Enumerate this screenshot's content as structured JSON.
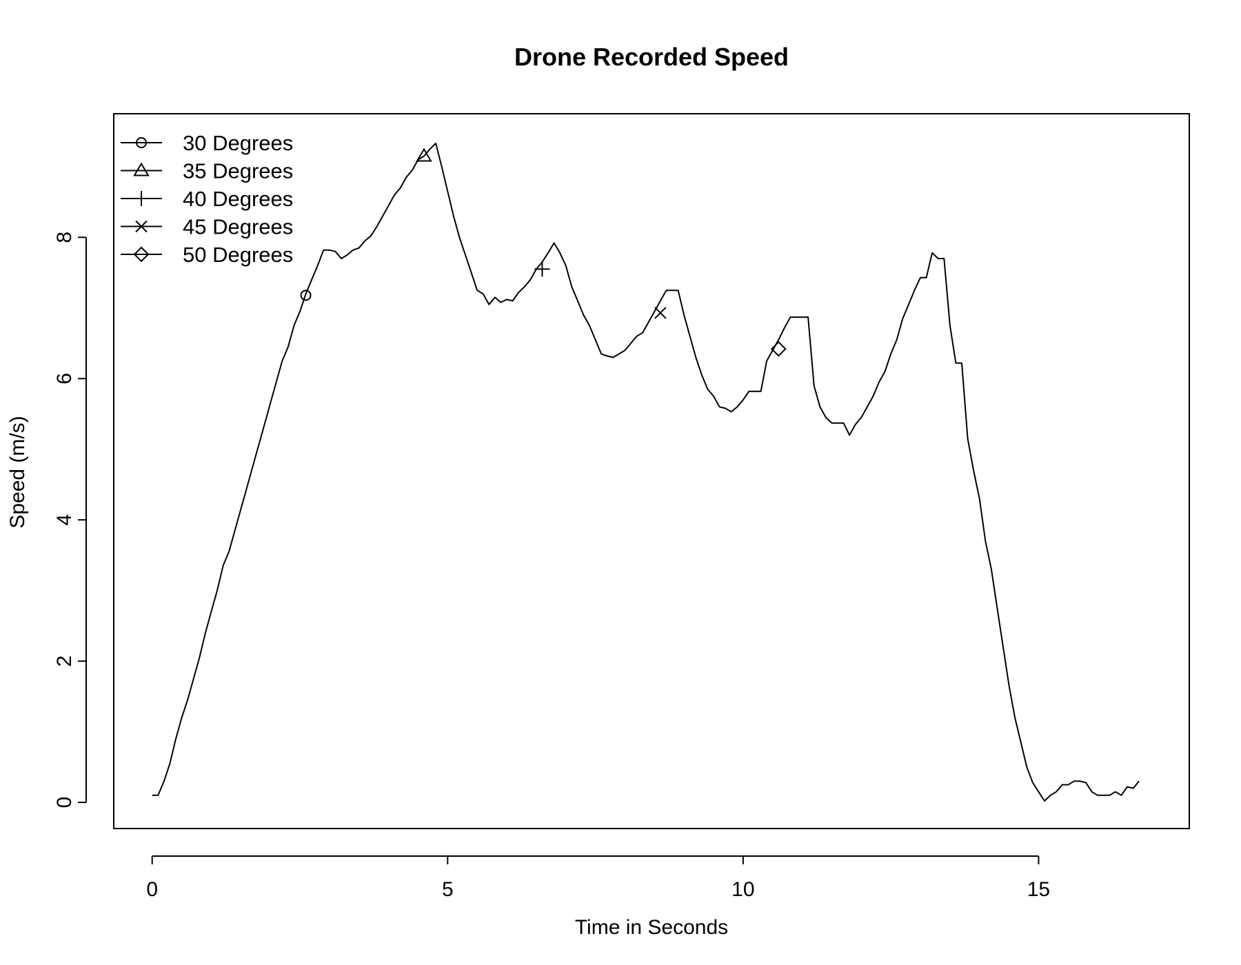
{
  "chart_data": {
    "type": "line",
    "title": "Drone Recorded Speed",
    "xlabel": "Time in Seconds",
    "ylabel": "Speed (m/s)",
    "xlim": [
      -0.65,
      17.55
    ],
    "ylim": [
      -0.37,
      9.75
    ],
    "x_ticks": [
      0,
      5,
      10,
      15
    ],
    "y_ticks": [
      0,
      2,
      4,
      6,
      8
    ],
    "grid": false,
    "legend_position": "top-left",
    "line_color": "#000000",
    "series": [
      {
        "name": "",
        "points": [
          [
            0.0,
            0.1
          ],
          [
            0.1,
            0.1
          ],
          [
            0.2,
            0.3
          ],
          [
            0.3,
            0.55
          ],
          [
            0.4,
            0.9
          ],
          [
            0.5,
            1.2
          ],
          [
            0.6,
            1.45
          ],
          [
            0.7,
            1.75
          ],
          [
            0.8,
            2.05
          ],
          [
            0.9,
            2.4
          ],
          [
            1.0,
            2.7
          ],
          [
            1.1,
            3.0
          ],
          [
            1.2,
            3.35
          ],
          [
            1.3,
            3.55
          ],
          [
            1.4,
            3.85
          ],
          [
            1.5,
            4.15
          ],
          [
            1.6,
            4.45
          ],
          [
            1.7,
            4.75
          ],
          [
            1.8,
            5.05
          ],
          [
            1.9,
            5.35
          ],
          [
            2.0,
            5.65
          ],
          [
            2.1,
            5.95
          ],
          [
            2.2,
            6.25
          ],
          [
            2.3,
            6.45
          ],
          [
            2.4,
            6.75
          ],
          [
            2.5,
            6.95
          ],
          [
            2.6,
            7.2
          ],
          [
            2.7,
            7.4
          ],
          [
            2.8,
            7.6
          ],
          [
            2.9,
            7.82
          ],
          [
            3.0,
            7.82
          ],
          [
            3.1,
            7.8
          ],
          [
            3.2,
            7.7
          ],
          [
            3.3,
            7.75
          ],
          [
            3.4,
            7.82
          ],
          [
            3.5,
            7.85
          ],
          [
            3.6,
            7.95
          ],
          [
            3.7,
            8.02
          ],
          [
            3.8,
            8.15
          ],
          [
            3.9,
            8.3
          ],
          [
            4.0,
            8.45
          ],
          [
            4.1,
            8.6
          ],
          [
            4.2,
            8.7
          ],
          [
            4.3,
            8.85
          ],
          [
            4.4,
            8.95
          ],
          [
            4.5,
            9.1
          ],
          [
            4.6,
            9.15
          ],
          [
            4.7,
            9.25
          ],
          [
            4.8,
            9.33
          ],
          [
            4.9,
            9.0
          ],
          [
            5.0,
            8.65
          ],
          [
            5.1,
            8.3
          ],
          [
            5.2,
            8.0
          ],
          [
            5.3,
            7.75
          ],
          [
            5.4,
            7.5
          ],
          [
            5.5,
            7.25
          ],
          [
            5.6,
            7.2
          ],
          [
            5.7,
            7.05
          ],
          [
            5.8,
            7.15
          ],
          [
            5.9,
            7.08
          ],
          [
            6.0,
            7.12
          ],
          [
            6.1,
            7.1
          ],
          [
            6.2,
            7.22
          ],
          [
            6.3,
            7.3
          ],
          [
            6.4,
            7.4
          ],
          [
            6.5,
            7.55
          ],
          [
            6.6,
            7.65
          ],
          [
            6.7,
            7.78
          ],
          [
            6.8,
            7.92
          ],
          [
            6.9,
            7.78
          ],
          [
            7.0,
            7.6
          ],
          [
            7.1,
            7.3
          ],
          [
            7.2,
            7.1
          ],
          [
            7.3,
            6.9
          ],
          [
            7.4,
            6.75
          ],
          [
            7.5,
            6.55
          ],
          [
            7.6,
            6.35
          ],
          [
            7.7,
            6.32
          ],
          [
            7.8,
            6.3
          ],
          [
            7.9,
            6.35
          ],
          [
            8.0,
            6.4
          ],
          [
            8.1,
            6.5
          ],
          [
            8.2,
            6.6
          ],
          [
            8.3,
            6.65
          ],
          [
            8.4,
            6.8
          ],
          [
            8.5,
            6.95
          ],
          [
            8.6,
            7.1
          ],
          [
            8.7,
            7.25
          ],
          [
            8.8,
            7.25
          ],
          [
            8.9,
            7.25
          ],
          [
            9.0,
            6.9
          ],
          [
            9.1,
            6.6
          ],
          [
            9.2,
            6.3
          ],
          [
            9.3,
            6.05
          ],
          [
            9.4,
            5.85
          ],
          [
            9.5,
            5.75
          ],
          [
            9.6,
            5.6
          ],
          [
            9.7,
            5.58
          ],
          [
            9.8,
            5.53
          ],
          [
            9.9,
            5.6
          ],
          [
            10.0,
            5.7
          ],
          [
            10.1,
            5.82
          ],
          [
            10.2,
            5.82
          ],
          [
            10.3,
            5.82
          ],
          [
            10.4,
            6.25
          ],
          [
            10.5,
            6.4
          ],
          [
            10.6,
            6.55
          ],
          [
            10.7,
            6.72
          ],
          [
            10.8,
            6.87
          ],
          [
            10.9,
            6.87
          ],
          [
            11.0,
            6.87
          ],
          [
            11.1,
            6.87
          ],
          [
            11.2,
            5.9
          ],
          [
            11.3,
            5.6
          ],
          [
            11.4,
            5.45
          ],
          [
            11.5,
            5.37
          ],
          [
            11.6,
            5.37
          ],
          [
            11.7,
            5.37
          ],
          [
            11.8,
            5.2
          ],
          [
            11.9,
            5.35
          ],
          [
            12.0,
            5.45
          ],
          [
            12.1,
            5.6
          ],
          [
            12.2,
            5.75
          ],
          [
            12.3,
            5.95
          ],
          [
            12.4,
            6.1
          ],
          [
            12.5,
            6.35
          ],
          [
            12.6,
            6.55
          ],
          [
            12.7,
            6.85
          ],
          [
            12.8,
            7.05
          ],
          [
            12.9,
            7.25
          ],
          [
            13.0,
            7.43
          ],
          [
            13.1,
            7.43
          ],
          [
            13.2,
            7.78
          ],
          [
            13.3,
            7.7
          ],
          [
            13.4,
            7.7
          ],
          [
            13.5,
            6.75
          ],
          [
            13.6,
            6.22
          ],
          [
            13.7,
            6.22
          ],
          [
            13.8,
            5.15
          ],
          [
            13.9,
            4.7
          ],
          [
            14.0,
            4.3
          ],
          [
            14.1,
            3.7
          ],
          [
            14.2,
            3.3
          ],
          [
            14.3,
            2.75
          ],
          [
            14.4,
            2.2
          ],
          [
            14.5,
            1.65
          ],
          [
            14.6,
            1.2
          ],
          [
            14.7,
            0.85
          ],
          [
            14.8,
            0.5
          ],
          [
            14.9,
            0.28
          ],
          [
            15.0,
            0.15
          ],
          [
            15.1,
            0.02
          ],
          [
            15.2,
            0.1
          ],
          [
            15.3,
            0.15
          ],
          [
            15.4,
            0.25
          ],
          [
            15.5,
            0.25
          ],
          [
            15.6,
            0.3
          ],
          [
            15.7,
            0.3
          ],
          [
            15.8,
            0.28
          ],
          [
            15.9,
            0.15
          ],
          [
            16.0,
            0.1
          ],
          [
            16.1,
            0.1
          ],
          [
            16.2,
            0.1
          ],
          [
            16.3,
            0.15
          ],
          [
            16.4,
            0.1
          ],
          [
            16.5,
            0.22
          ],
          [
            16.6,
            0.2
          ],
          [
            16.7,
            0.3
          ]
        ]
      }
    ],
    "markers": [
      {
        "label": "30 Degrees",
        "shape": "circle",
        "x": 2.6,
        "y": 7.18
      },
      {
        "label": "35 Degrees",
        "shape": "triangle",
        "x": 4.6,
        "y": 9.15
      },
      {
        "label": "40 Degrees",
        "shape": "plus",
        "x": 6.6,
        "y": 7.55
      },
      {
        "label": "45 Degrees",
        "shape": "cross",
        "x": 8.6,
        "y": 6.93
      },
      {
        "label": "50 Degrees",
        "shape": "diamond",
        "x": 10.6,
        "y": 6.42
      }
    ]
  }
}
